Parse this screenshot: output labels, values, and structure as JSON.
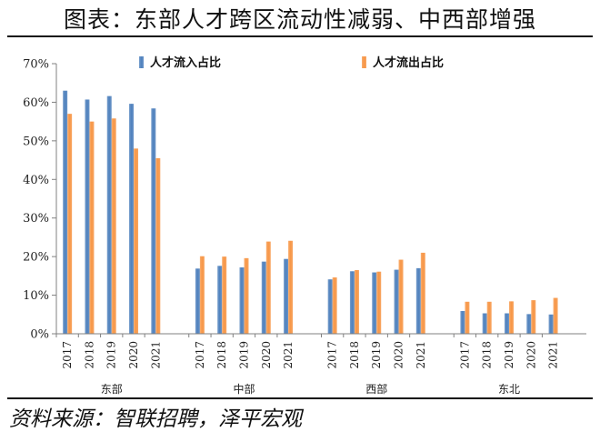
{
  "title": "图表：东部人才跨区流动性减弱、中西部增强",
  "source": "资料来源：智联招聘，泽平宏观",
  "chart_data": {
    "type": "bar",
    "title": "图表：东部人才跨区流动性减弱、中西部增强",
    "xlabel": "",
    "ylabel": "",
    "ylim": [
      0,
      70
    ],
    "yticks": [
      "0%",
      "10%",
      "20%",
      "30%",
      "40%",
      "50%",
      "60%",
      "70%"
    ],
    "grid": false,
    "legend_position": "top",
    "groups": [
      {
        "name": "东部",
        "years": [
          "2017",
          "2018",
          "2019",
          "2020",
          "2021"
        ]
      },
      {
        "name": "中部",
        "years": [
          "2017",
          "2018",
          "2019",
          "2020",
          "2021"
        ]
      },
      {
        "name": "西部",
        "years": [
          "2017",
          "2018",
          "2019",
          "2020",
          "2021"
        ]
      },
      {
        "name": "东北",
        "years": [
          "2017",
          "2018",
          "2019",
          "2020",
          "2021"
        ]
      }
    ],
    "series": [
      {
        "name": "人才流入占比",
        "color": "#4f81bd",
        "values": [
          [
            63.0,
            60.7,
            61.6,
            59.6,
            58.4
          ],
          [
            16.9,
            17.6,
            17.2,
            18.7,
            19.4
          ],
          [
            14.1,
            16.2,
            15.9,
            16.6,
            17.0
          ],
          [
            5.9,
            5.3,
            5.3,
            5.1,
            5.0
          ]
        ]
      },
      {
        "name": "人才流出占比",
        "color": "#f79646",
        "values": [
          [
            57.0,
            55.0,
            55.8,
            48.0,
            45.5
          ],
          [
            20.1,
            20.0,
            19.6,
            23.9,
            24.1
          ],
          [
            14.6,
            16.5,
            16.1,
            19.2,
            21.0
          ],
          [
            8.3,
            8.3,
            8.4,
            8.7,
            9.3
          ]
        ]
      }
    ]
  }
}
